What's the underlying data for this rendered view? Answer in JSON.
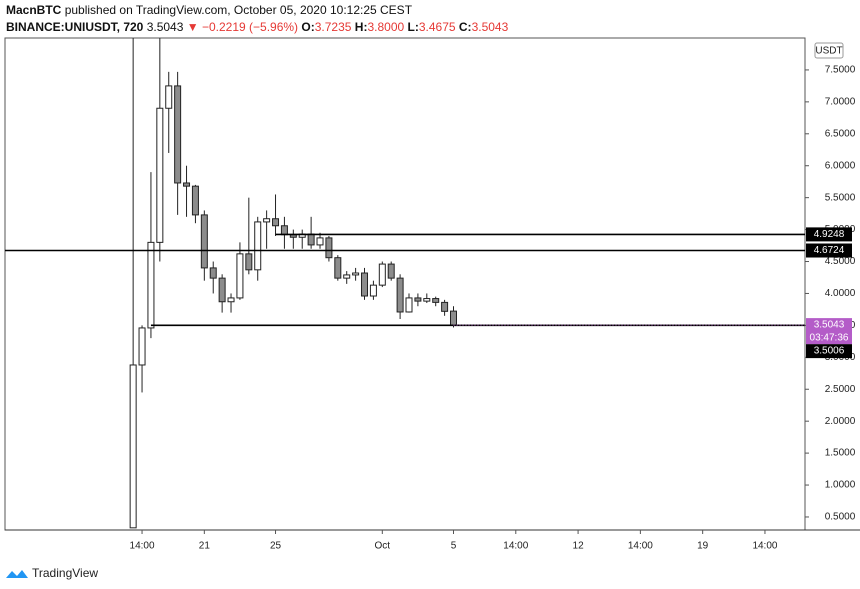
{
  "header": {
    "author": "MacnBTC",
    "published": "published on TradingView.com, October 05, 2020 10:12:25 CEST",
    "symbol": "BINANCE:UNIUSDT, 720",
    "last": "3.5043",
    "change_arrow": "▼",
    "change": "−0.2219 (−5.96%)",
    "o_label": "O:",
    "o": "3.7235",
    "h_label": "H:",
    "h": "3.8000",
    "l_label": "L:",
    "l": "3.4675",
    "c_label": "C:",
    "c": "3.5043"
  },
  "chart_data": {
    "type": "candlestick",
    "currency": "USDT",
    "open": [
      0.33,
      2.88,
      3.46,
      4.8,
      6.9,
      7.25,
      5.73,
      5.68,
      5.23,
      4.4,
      4.24,
      3.87,
      3.93,
      4.62,
      4.37,
      5.12,
      5.17,
      5.06,
      4.92,
      4.88,
      4.93,
      4.76,
      4.87,
      4.56,
      4.24,
      4.29,
      4.32,
      3.96,
      4.13,
      4.46,
      4.24,
      3.71,
      3.93,
      3.88,
      3.92,
      3.86,
      3.7235
    ],
    "high": [
      8.0,
      3.5,
      5.9,
      8.0,
      7.47,
      7.47,
      6.0,
      5.7,
      5.3,
      4.5,
      4.3,
      4.0,
      4.8,
      5.5,
      5.2,
      5.3,
      5.55,
      5.2,
      5.0,
      5.0,
      5.2,
      4.95,
      4.9,
      4.6,
      4.35,
      4.4,
      4.4,
      4.2,
      4.5,
      4.5,
      4.3,
      4.0,
      4.0,
      4.0,
      3.95,
      3.9,
      3.8
    ],
    "low": [
      0.33,
      2.45,
      3.3,
      4.5,
      6.2,
      5.23,
      5.2,
      5.1,
      4.2,
      4.0,
      3.7,
      3.7,
      3.9,
      4.3,
      4.2,
      4.7,
      4.9,
      4.7,
      4.7,
      4.7,
      4.7,
      4.7,
      4.5,
      4.2,
      4.15,
      4.2,
      3.9,
      3.9,
      4.1,
      4.2,
      3.6,
      3.7,
      3.8,
      3.85,
      3.8,
      3.65,
      3.4675
    ],
    "close": [
      2.88,
      3.46,
      4.8,
      6.9,
      7.25,
      5.73,
      5.68,
      5.23,
      4.4,
      4.24,
      3.87,
      3.93,
      4.62,
      4.37,
      5.12,
      5.17,
      5.06,
      4.92,
      4.88,
      4.93,
      4.76,
      4.87,
      4.56,
      4.24,
      4.29,
      4.32,
      3.96,
      4.13,
      4.46,
      4.24,
      3.71,
      3.93,
      3.88,
      3.92,
      3.86,
      3.72,
      3.5043
    ],
    "up_color": "#ffffff",
    "down_color": "#8c8c8c",
    "xlim": [
      -14.4,
      75.5
    ],
    "xticks": [
      {
        "value": 1,
        "label": "14:00"
      },
      {
        "value": 8,
        "label": "21"
      },
      {
        "value": 16,
        "label": "25"
      },
      {
        "value": 28,
        "label": "Oct"
      },
      {
        "value": 36,
        "label": "5"
      },
      {
        "value": 43,
        "label": "14:00"
      },
      {
        "value": 50,
        "label": "12"
      },
      {
        "value": 57,
        "label": "14:00"
      },
      {
        "value": 64,
        "label": "19"
      },
      {
        "value": 71,
        "label": "14:00"
      }
    ],
    "ylim": [
      0.296,
      8.0
    ],
    "yticks": [
      {
        "value": 0.5,
        "label": "0.5000"
      },
      {
        "value": 1,
        "label": "1.0000"
      },
      {
        "value": 1.5,
        "label": "1.5000"
      },
      {
        "value": 2,
        "label": "2.0000"
      },
      {
        "value": 2.5,
        "label": "2.5000"
      },
      {
        "value": 3,
        "label": "3.0000"
      },
      {
        "value": 3.5,
        "label": "3.5000"
      },
      {
        "value": 4,
        "label": "4.0000"
      },
      {
        "value": 4.5,
        "label": "4.5000"
      },
      {
        "value": 5,
        "label": "5.0000"
      },
      {
        "value": 5.5,
        "label": "5.5000"
      },
      {
        "value": 6,
        "label": "6.0000"
      },
      {
        "value": 6.5,
        "label": "6.5000"
      },
      {
        "value": 7,
        "label": "7.0000"
      },
      {
        "value": 7.5,
        "label": "7.5000"
      }
    ],
    "levels": [
      {
        "value": 4.9248,
        "label": "4.9248",
        "from": 16
      },
      {
        "value": 4.6724,
        "label": "4.6724"
      },
      {
        "value": 3.5006,
        "label": "3.5006",
        "from": 2
      }
    ],
    "last_price": {
      "value": 3.5043,
      "label": "3.5043",
      "countdown": "03:47:36",
      "color": "#b45cc8"
    }
  },
  "footer": {
    "brand": "TradingView"
  }
}
